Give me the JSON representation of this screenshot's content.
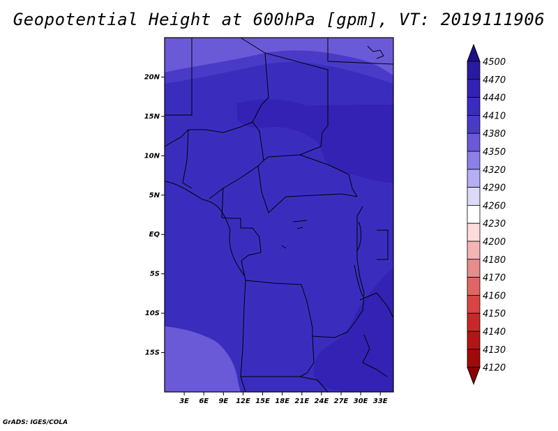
{
  "title": "Geopotential Height at 600hPa [gpm], VT: 2019111906",
  "credit": "GrADS: IGES/COLA",
  "map": {
    "lat_labels": [
      "20N",
      "15N",
      "10N",
      "5N",
      "EQ",
      "5S",
      "10S",
      "15S"
    ],
    "lat_values": [
      20,
      15,
      10,
      5,
      0,
      -5,
      -10,
      -15
    ],
    "lon_labels": [
      "3E",
      "6E",
      "9E",
      "12E",
      "15E",
      "18E",
      "21E",
      "24E",
      "27E",
      "30E",
      "33E"
    ],
    "lon_values": [
      3,
      6,
      9,
      12,
      15,
      18,
      21,
      24,
      27,
      30,
      33
    ],
    "lon_range": [
      0,
      35
    ],
    "lat_range": [
      -20,
      25
    ]
  },
  "colorbar": {
    "levels": [
      "4500",
      "4470",
      "4440",
      "4410",
      "4380",
      "4350",
      "4320",
      "4290",
      "4260",
      "4230",
      "4200",
      "4180",
      "4170",
      "4160",
      "4150",
      "4140",
      "4130",
      "4120"
    ],
    "colors": [
      "#1e0f8c",
      "#2a1aa0",
      "#3322b4",
      "#3a2dbe",
      "#4a3ac8",
      "#6a5ad8",
      "#8c80e8",
      "#b4aef4",
      "#dcdaf8",
      "#ffffff",
      "#fcdcdc",
      "#f4b4b4",
      "#e88c8c",
      "#e06666",
      "#d84444",
      "#c82828",
      "#b41414",
      "#a00a0a",
      "#8c0000"
    ]
  },
  "fields": {
    "base": "#3a2dbe",
    "high": "#3322b4",
    "low": "#4a3ac8",
    "lowest": "#6a5ad8"
  }
}
